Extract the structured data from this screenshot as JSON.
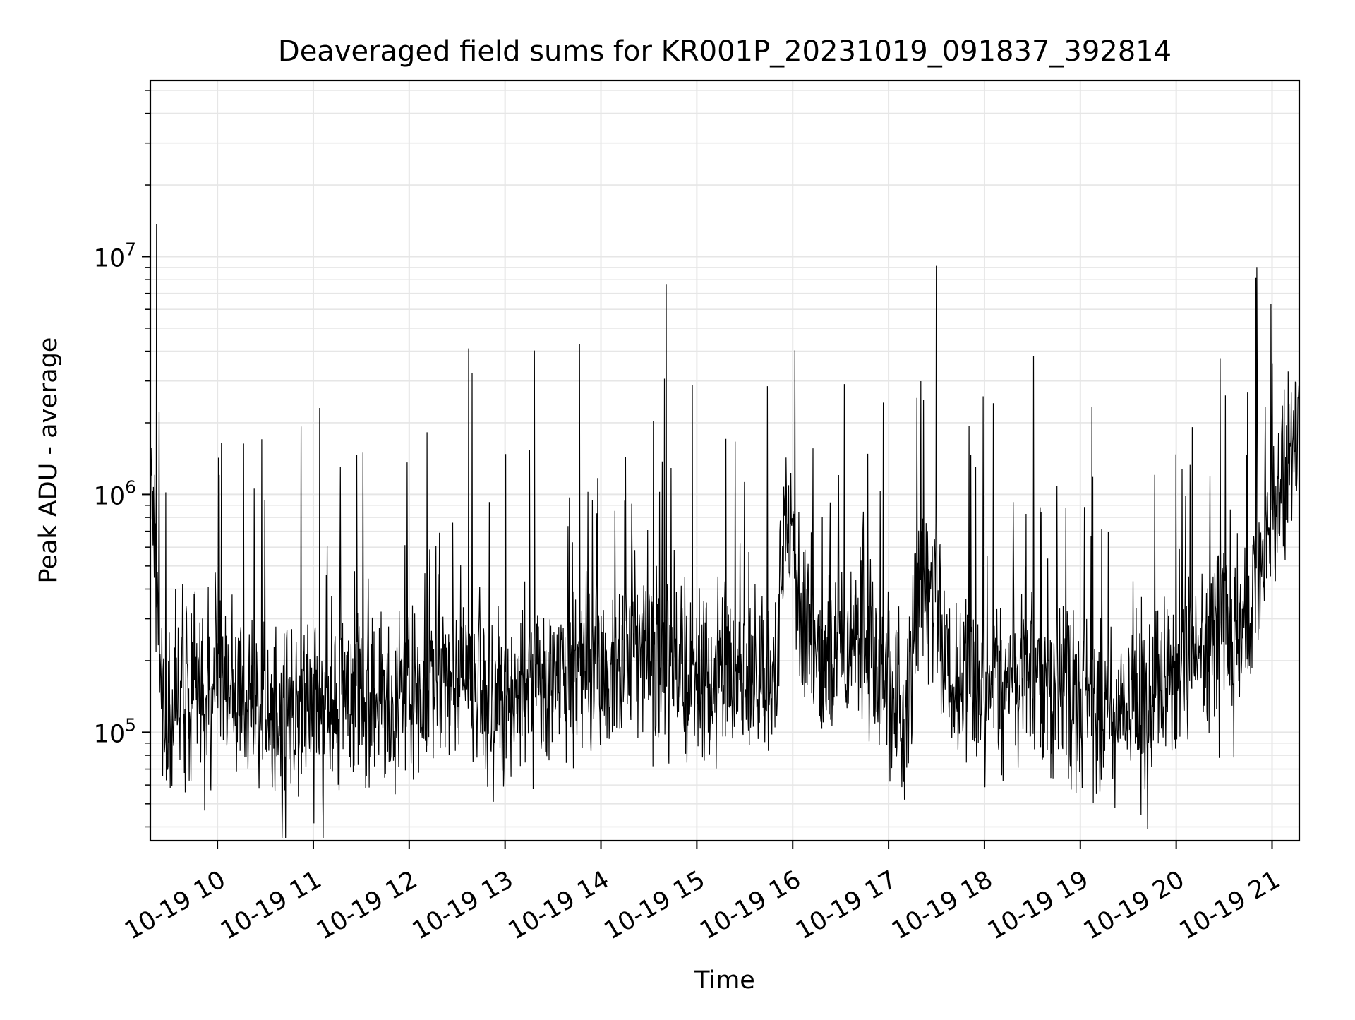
{
  "chart_data": {
    "type": "line",
    "title": "Deaveraged field sums for KR001P_20231019_091837_392814",
    "xlabel": "Time",
    "ylabel": "Peak ADU - average",
    "yscale": "log",
    "xlim": [
      "2023-10-19 09:18",
      "2023-10-19 21:17"
    ],
    "ylim": [
      35000,
      55000000
    ],
    "grid": true,
    "line_color": "#000000",
    "x_tick_labels": [
      "10-19 10",
      "10-19 11",
      "10-19 12",
      "10-19 13",
      "10-19 14",
      "10-19 15",
      "10-19 16",
      "10-19 17",
      "10-19 18",
      "10-19 19",
      "10-19 20",
      "10-19 21"
    ],
    "y_tick_labels": [
      {
        "value": 100000,
        "base": "10",
        "exp": "5"
      },
      {
        "value": 1000000,
        "base": "10",
        "exp": "6"
      },
      {
        "value": 10000000,
        "base": "10",
        "exp": "7"
      }
    ],
    "series": [
      {
        "x": [
          "2023-10-19 09:18",
          "2023-10-19 09:22",
          "2023-10-19 09:25",
          "2023-10-19 09:30",
          "2023-10-19 09:35",
          "2023-10-19 09:40",
          "2023-10-19 09:45",
          "2023-10-19 09:50",
          "2023-10-19 09:55",
          "2023-10-19 10:00",
          "2023-10-19 10:05",
          "2023-10-19 10:10",
          "2023-10-19 10:20",
          "2023-10-19 10:30",
          "2023-10-19 10:40",
          "2023-10-19 10:50",
          "2023-10-19 11:00",
          "2023-10-19 11:10",
          "2023-10-19 11:20",
          "2023-10-19 11:30",
          "2023-10-19 11:40",
          "2023-10-19 11:50",
          "2023-10-19 12:00",
          "2023-10-19 12:10",
          "2023-10-19 12:20",
          "2023-10-19 12:30",
          "2023-10-19 12:34",
          "2023-10-19 12:40",
          "2023-10-19 12:50",
          "2023-10-19 13:00",
          "2023-10-19 13:10",
          "2023-10-19 13:20",
          "2023-10-19 13:30",
          "2023-10-19 13:40",
          "2023-10-19 13:50",
          "2023-10-19 14:00",
          "2023-10-19 14:10",
          "2023-10-19 14:20",
          "2023-10-19 14:30",
          "2023-10-19 14:40",
          "2023-10-19 14:50",
          "2023-10-19 15:00",
          "2023-10-19 15:10",
          "2023-10-19 15:20",
          "2023-10-19 15:30",
          "2023-10-19 15:40",
          "2023-10-19 15:50",
          "2023-10-19 15:55",
          "2023-10-19 16:00",
          "2023-10-19 16:10",
          "2023-10-19 16:20",
          "2023-10-19 16:30",
          "2023-10-19 16:40",
          "2023-10-19 16:50",
          "2023-10-19 17:00",
          "2023-10-19 17:10",
          "2023-10-19 17:20",
          "2023-10-19 17:30",
          "2023-10-19 17:40",
          "2023-10-19 17:50",
          "2023-10-19 18:00",
          "2023-10-19 18:10",
          "2023-10-19 18:20",
          "2023-10-19 18:30",
          "2023-10-19 18:40",
          "2023-10-19 18:50",
          "2023-10-19 19:00",
          "2023-10-19 19:10",
          "2023-10-19 19:20",
          "2023-10-19 19:30",
          "2023-10-19 19:40",
          "2023-10-19 19:50",
          "2023-10-19 20:00",
          "2023-10-19 20:10",
          "2023-10-19 20:20",
          "2023-10-19 20:30",
          "2023-10-19 20:40",
          "2023-10-19 20:50",
          "2023-10-19 21:00",
          "2023-10-19 21:10",
          "2023-10-19 21:17"
        ],
        "y": [
          1500000,
          400000,
          150000,
          120000,
          130000,
          140000,
          160000,
          150000,
          140000,
          150000,
          130000,
          170000,
          140000,
          130000,
          110000,
          120000,
          140000,
          130000,
          140000,
          140000,
          130000,
          130000,
          140000,
          150000,
          160000,
          170000,
          180000,
          150000,
          130000,
          120000,
          140000,
          160000,
          170000,
          160000,
          180000,
          170000,
          190000,
          210000,
          230000,
          200000,
          180000,
          170000,
          180000,
          190000,
          190000,
          180000,
          170000,
          1000000,
          500000,
          250000,
          200000,
          220000,
          230000,
          230000,
          150000,
          130000,
          400000,
          350000,
          160000,
          150000,
          150000,
          140000,
          160000,
          200000,
          150000,
          150000,
          130000,
          120000,
          110000,
          120000,
          130000,
          150000,
          180000,
          200000,
          250000,
          300000,
          270000,
          350000,
          900000,
          1500000,
          1700000
        ]
      }
    ]
  }
}
